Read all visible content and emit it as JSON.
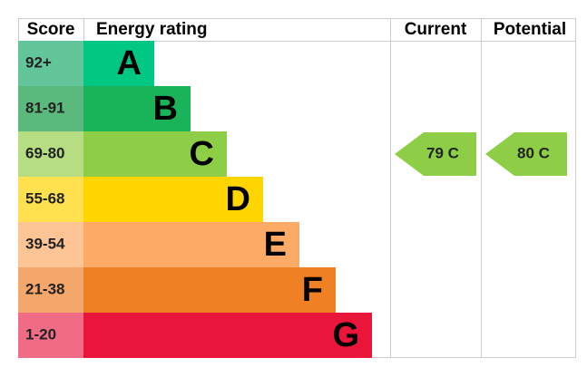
{
  "chart_data": {
    "type": "epc",
    "headers": [
      "Score",
      "Energy rating",
      "Current",
      "Potential"
    ],
    "bands": [
      {
        "score": "92+",
        "letter": "A",
        "color": "#00c781",
        "score_color": "#63c69b"
      },
      {
        "score": "81-91",
        "letter": "B",
        "color": "#19b459",
        "score_color": "#5cb97d"
      },
      {
        "score": "69-80",
        "letter": "C",
        "color": "#8dce46",
        "score_color": "#b6dd82"
      },
      {
        "score": "55-68",
        "letter": "D",
        "color": "#ffd500",
        "score_color": "#ffe14f"
      },
      {
        "score": "39-54",
        "letter": "E",
        "color": "#fcaa65",
        "score_color": "#fdc596"
      },
      {
        "score": "21-38",
        "letter": "F",
        "color": "#ef8023",
        "score_color": "#f5a66b"
      },
      {
        "score": "1-20",
        "letter": "G",
        "color": "#e9153b",
        "score_color": "#f06b85"
      }
    ],
    "current": {
      "value": 79,
      "label": "79 C"
    },
    "potential": {
      "value": 80,
      "label": "80 C"
    }
  }
}
